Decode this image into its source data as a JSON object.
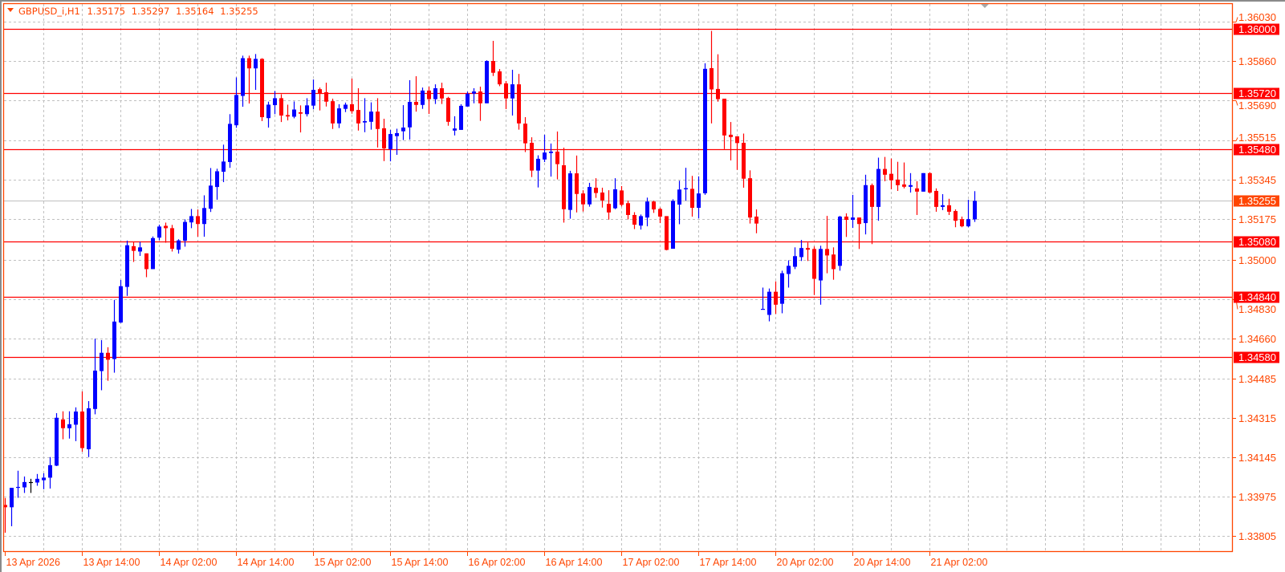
{
  "header": {
    "symbol_timeframe": "GBPUSD_i,H1",
    "open": "1.35175",
    "high": "1.35297",
    "low": "1.35164",
    "close": "1.35255",
    "menu_icon": "triangle-down-icon"
  },
  "colors": {
    "frame": "#FF4500",
    "axis_text": "#FF4500",
    "bull": "#0000FF",
    "bear": "#FF0000",
    "doji": "#000000",
    "grid": "#C0C0C0",
    "level_line": "#FF0000",
    "level_label_bg": "#FF0000",
    "current_price_line": "#C0C0C0",
    "current_price_bg": "#FF4500"
  },
  "chart_data": {
    "type": "candlestick",
    "symbol": "GBPUSD_i",
    "timeframe": "H1",
    "grid": true,
    "ylim": [
      1.3378,
      1.3605
    ],
    "y_ticks": [
      "1.36030",
      "1.35860",
      "1.35690",
      "1.35515",
      "1.35345",
      "1.35175",
      "1.35000",
      "1.34830",
      "1.34660",
      "1.34485",
      "1.34315",
      "1.34145",
      "1.33975",
      "1.33805"
    ],
    "x_ticks": [
      "13 Apr 2026",
      "13 Apr 14:00",
      "14 Apr 02:00",
      "14 Apr 14:00",
      "15 Apr 02:00",
      "15 Apr 14:00",
      "16 Apr 02:00",
      "16 Apr 14:00",
      "17 Apr 02:00",
      "17 Apr 14:00",
      "20 Apr 02:00",
      "20 Apr 14:00",
      "21 Apr 02:00"
    ],
    "x_tick_every_bars": 12,
    "horizontal_levels": [
      "1.36000",
      "1.35720",
      "1.35480",
      "1.35080",
      "1.34840",
      "1.34580"
    ],
    "current_price": "1.35255",
    "columns": [
      "open",
      "high",
      "low",
      "close"
    ],
    "candles": [
      [
        1.3394,
        1.3397,
        1.3382,
        1.3393
      ],
      [
        1.3393,
        1.34014,
        1.33848,
        1.34014
      ],
      [
        1.34014,
        1.34088,
        1.33971,
        1.34018
      ],
      [
        1.34016,
        1.34063,
        1.33992,
        1.34039
      ],
      [
        1.34039,
        1.34053,
        1.33992,
        1.34039
      ],
      [
        1.34037,
        1.34074,
        1.34023,
        1.34053
      ],
      [
        1.34047,
        1.34077,
        1.34008,
        1.34058
      ],
      [
        1.34058,
        1.34147,
        1.34011,
        1.34112
      ],
      [
        1.3411,
        1.34337,
        1.34108,
        1.34317
      ],
      [
        1.3431,
        1.34345,
        1.34224,
        1.34272
      ],
      [
        1.34272,
        1.34345,
        1.34227,
        1.34289
      ],
      [
        1.34287,
        1.34362,
        1.34216,
        1.34344
      ],
      [
        1.34344,
        1.34431,
        1.3417,
        1.34186
      ],
      [
        1.34181,
        1.34389,
        1.34147,
        1.34358
      ],
      [
        1.34355,
        1.34659,
        1.34332,
        1.34521
      ],
      [
        1.34519,
        1.34653,
        1.34436,
        1.34598
      ],
      [
        1.34598,
        1.34622,
        1.34477,
        1.34568
      ],
      [
        1.34571,
        1.34827,
        1.34512,
        1.34733
      ],
      [
        1.34729,
        1.34913,
        1.34727,
        1.34886
      ],
      [
        1.34883,
        1.35083,
        1.34844,
        1.35063
      ],
      [
        1.35059,
        1.35078,
        1.34991,
        1.35039
      ],
      [
        1.35036,
        1.35078,
        1.35017,
        1.35054
      ],
      [
        1.35028,
        1.35028,
        1.34925,
        1.3496
      ],
      [
        1.3496,
        1.35101,
        1.3496,
        1.35094
      ],
      [
        1.35096,
        1.35152,
        1.35085,
        1.35144
      ],
      [
        1.35147,
        1.35161,
        1.35074,
        1.35137
      ],
      [
        1.35137,
        1.35151,
        1.35036,
        1.35048
      ],
      [
        1.35044,
        1.35089,
        1.35027,
        1.35084
      ],
      [
        1.35083,
        1.35175,
        1.35057,
        1.35164
      ],
      [
        1.35162,
        1.3522,
        1.35137,
        1.35189
      ],
      [
        1.35189,
        1.35218,
        1.351,
        1.35155
      ],
      [
        1.35155,
        1.35279,
        1.351,
        1.35224
      ],
      [
        1.35221,
        1.35397,
        1.35207,
        1.35321
      ],
      [
        1.35315,
        1.35394,
        1.3526,
        1.35383
      ],
      [
        1.35381,
        1.35498,
        1.35336,
        1.35425
      ],
      [
        1.35423,
        1.3563,
        1.35398,
        1.35588
      ],
      [
        1.35582,
        1.35789,
        1.35571,
        1.35713
      ],
      [
        1.35709,
        1.35883,
        1.35662,
        1.35872
      ],
      [
        1.35872,
        1.35883,
        1.35676,
        1.35828
      ],
      [
        1.35828,
        1.3589,
        1.35735,
        1.35869
      ],
      [
        1.35869,
        1.35872,
        1.356,
        1.35617
      ],
      [
        1.35613,
        1.35684,
        1.35572,
        1.35671
      ],
      [
        1.35669,
        1.3573,
        1.3563,
        1.35699
      ],
      [
        1.35699,
        1.35716,
        1.35596,
        1.35624
      ],
      [
        1.35626,
        1.35671,
        1.35603,
        1.3562
      ],
      [
        1.35619,
        1.35685,
        1.35612,
        1.3565
      ],
      [
        1.35638,
        1.35668,
        1.35551,
        1.35632
      ],
      [
        1.3563,
        1.35699,
        1.3562,
        1.35668
      ],
      [
        1.35667,
        1.3578,
        1.35651,
        1.35735
      ],
      [
        1.35738,
        1.35745,
        1.35646,
        1.3572
      ],
      [
        1.35725,
        1.35766,
        1.35663,
        1.35684
      ],
      [
        1.35686,
        1.35697,
        1.35566,
        1.3559
      ],
      [
        1.3559,
        1.35673,
        1.3557,
        1.35655
      ],
      [
        1.35653,
        1.3568,
        1.35639,
        1.35671
      ],
      [
        1.35673,
        1.35784,
        1.35632,
        1.35643
      ],
      [
        1.35648,
        1.35742,
        1.35559,
        1.3559
      ],
      [
        1.35594,
        1.35699,
        1.35552,
        1.356
      ],
      [
        1.35597,
        1.35681,
        1.35563,
        1.35641
      ],
      [
        1.35641,
        1.35699,
        1.35486,
        1.35566
      ],
      [
        1.35569,
        1.3561,
        1.35427,
        1.35482
      ],
      [
        1.35479,
        1.35562,
        1.35426,
        1.35544
      ],
      [
        1.35535,
        1.35567,
        1.35454,
        1.35548
      ],
      [
        1.35556,
        1.35669,
        1.35518,
        1.35572
      ],
      [
        1.35573,
        1.35777,
        1.3552,
        1.35683
      ],
      [
        1.35683,
        1.35794,
        1.35641,
        1.3567
      ],
      [
        1.3567,
        1.35745,
        1.35653,
        1.35732
      ],
      [
        1.35732,
        1.35749,
        1.35631,
        1.35695
      ],
      [
        1.35695,
        1.35759,
        1.35674,
        1.35742
      ],
      [
        1.35742,
        1.35766,
        1.35674,
        1.35698
      ],
      [
        1.357,
        1.35705,
        1.3558,
        1.35597
      ],
      [
        1.35559,
        1.35621,
        1.35538,
        1.35568
      ],
      [
        1.35562,
        1.35673,
        1.35562,
        1.35666
      ],
      [
        1.35663,
        1.35727,
        1.35663,
        1.35718
      ],
      [
        1.35719,
        1.35742,
        1.35677,
        1.35728
      ],
      [
        1.35728,
        1.35749,
        1.35601,
        1.35677
      ],
      [
        1.35677,
        1.35863,
        1.35677,
        1.3586
      ],
      [
        1.3586,
        1.35947,
        1.35795,
        1.35809
      ],
      [
        1.35815,
        1.35825,
        1.35751,
        1.35759
      ],
      [
        1.35763,
        1.35773,
        1.35652,
        1.35698
      ],
      [
        1.35698,
        1.35822,
        1.35624,
        1.35759
      ],
      [
        1.35759,
        1.35804,
        1.35563,
        1.3559
      ],
      [
        1.35589,
        1.35617,
        1.35466,
        1.35504
      ],
      [
        1.35506,
        1.3553,
        1.35358,
        1.35386
      ],
      [
        1.35386,
        1.35452,
        1.35313,
        1.35437
      ],
      [
        1.35434,
        1.35541,
        1.35423,
        1.35464
      ],
      [
        1.35462,
        1.35503,
        1.3536,
        1.35468
      ],
      [
        1.35468,
        1.35555,
        1.35348,
        1.35414
      ],
      [
        1.35409,
        1.35485,
        1.35161,
        1.35219
      ],
      [
        1.35216,
        1.35385,
        1.35178,
        1.35374
      ],
      [
        1.35374,
        1.35451,
        1.35205,
        1.35285
      ],
      [
        1.35287,
        1.35301,
        1.35209,
        1.3524
      ],
      [
        1.3524,
        1.35333,
        1.3523,
        1.35315
      ],
      [
        1.35312,
        1.35353,
        1.35268,
        1.35289
      ],
      [
        1.35291,
        1.35312,
        1.35226,
        1.35257
      ],
      [
        1.35242,
        1.35301,
        1.35174,
        1.35205
      ],
      [
        1.35223,
        1.35353,
        1.35219,
        1.35305
      ],
      [
        1.353,
        1.35319,
        1.35231,
        1.35238
      ],
      [
        1.35245,
        1.35256,
        1.35175,
        1.35194
      ],
      [
        1.35194,
        1.35206,
        1.35133,
        1.35152
      ],
      [
        1.35148,
        1.35196,
        1.35131,
        1.35189
      ],
      [
        1.35183,
        1.35269,
        1.35145,
        1.35252
      ],
      [
        1.35252,
        1.35256,
        1.35203,
        1.35218
      ],
      [
        1.3522,
        1.35226,
        1.35159,
        1.35187
      ],
      [
        1.35189,
        1.35189,
        1.35041,
        1.35043
      ],
      [
        1.35048,
        1.35262,
        1.35048,
        1.35255
      ],
      [
        1.35239,
        1.35342,
        1.35154,
        1.35304
      ],
      [
        1.35305,
        1.35398,
        1.35256,
        1.3531
      ],
      [
        1.35307,
        1.35363,
        1.35187,
        1.35225
      ],
      [
        1.35225,
        1.35361,
        1.35179,
        1.35287
      ],
      [
        1.35288,
        1.3585,
        1.35281,
        1.35826
      ],
      [
        1.35829,
        1.3599,
        1.3559,
        1.35737
      ],
      [
        1.35739,
        1.35889,
        1.35684,
        1.35695
      ],
      [
        1.35697,
        1.35697,
        1.35479,
        1.35538
      ],
      [
        1.35541,
        1.35596,
        1.3543,
        1.35531
      ],
      [
        1.35534,
        1.35534,
        1.35389,
        1.35505
      ],
      [
        1.35506,
        1.35546,
        1.35312,
        1.35351
      ],
      [
        1.35353,
        1.35387,
        1.35157,
        1.35183
      ],
      [
        1.35187,
        1.35218,
        1.35115,
        1.35157
      ],
      [
        1.34786,
        1.3488,
        1.34786,
        1.34788
      ],
      [
        1.34762,
        1.34876,
        1.34734,
        1.34862
      ],
      [
        1.34862,
        1.34907,
        1.34766,
        1.34806
      ],
      [
        1.3481,
        1.34953,
        1.34769,
        1.34942
      ],
      [
        1.34939,
        1.34998,
        1.3488,
        1.34974
      ],
      [
        1.3497,
        1.35054,
        1.3496,
        1.35016
      ],
      [
        1.35012,
        1.35086,
        1.34995,
        1.35051
      ],
      [
        1.35051,
        1.35075,
        1.34995,
        1.35044
      ],
      [
        1.35047,
        1.35058,
        1.34848,
        1.34918
      ],
      [
        1.34911,
        1.35061,
        1.34806,
        1.35047
      ],
      [
        1.35047,
        1.3519,
        1.34942,
        1.35019
      ],
      [
        1.35023,
        1.35054,
        1.34914,
        1.3496
      ],
      [
        1.34974,
        1.3519,
        1.34953,
        1.35187
      ],
      [
        1.35187,
        1.35201,
        1.35099,
        1.35173
      ],
      [
        1.35173,
        1.35281,
        1.35138,
        1.35183
      ],
      [
        1.35183,
        1.35183,
        1.35047,
        1.35155
      ],
      [
        1.35159,
        1.35368,
        1.3511,
        1.35323
      ],
      [
        1.35323,
        1.3533,
        1.35068,
        1.35229
      ],
      [
        1.35229,
        1.35442,
        1.35169,
        1.35393
      ],
      [
        1.35393,
        1.35445,
        1.3534,
        1.35368
      ],
      [
        1.35372,
        1.35438,
        1.35305,
        1.35344
      ],
      [
        1.35347,
        1.35424,
        1.35298,
        1.35323
      ],
      [
        1.35326,
        1.35421,
        1.35309,
        1.35316
      ],
      [
        1.35316,
        1.35375,
        1.35291,
        1.35323
      ],
      [
        1.35309,
        1.3534,
        1.35194,
        1.35295
      ],
      [
        1.35295,
        1.35375,
        1.35295,
        1.35375
      ],
      [
        1.35375,
        1.35379,
        1.35288,
        1.35291
      ],
      [
        1.35298,
        1.35309,
        1.35208,
        1.35229
      ],
      [
        1.35229,
        1.35284,
        1.35215,
        1.35236
      ],
      [
        1.35236,
        1.35264,
        1.35194,
        1.35208
      ],
      [
        1.35211,
        1.35218,
        1.35141,
        1.35169
      ],
      [
        1.35176,
        1.35187,
        1.35141,
        1.35145
      ],
      [
        1.35145,
        1.3526,
        1.35141,
        1.35176
      ],
      [
        1.35175,
        1.35297,
        1.35164,
        1.35255
      ]
    ]
  }
}
